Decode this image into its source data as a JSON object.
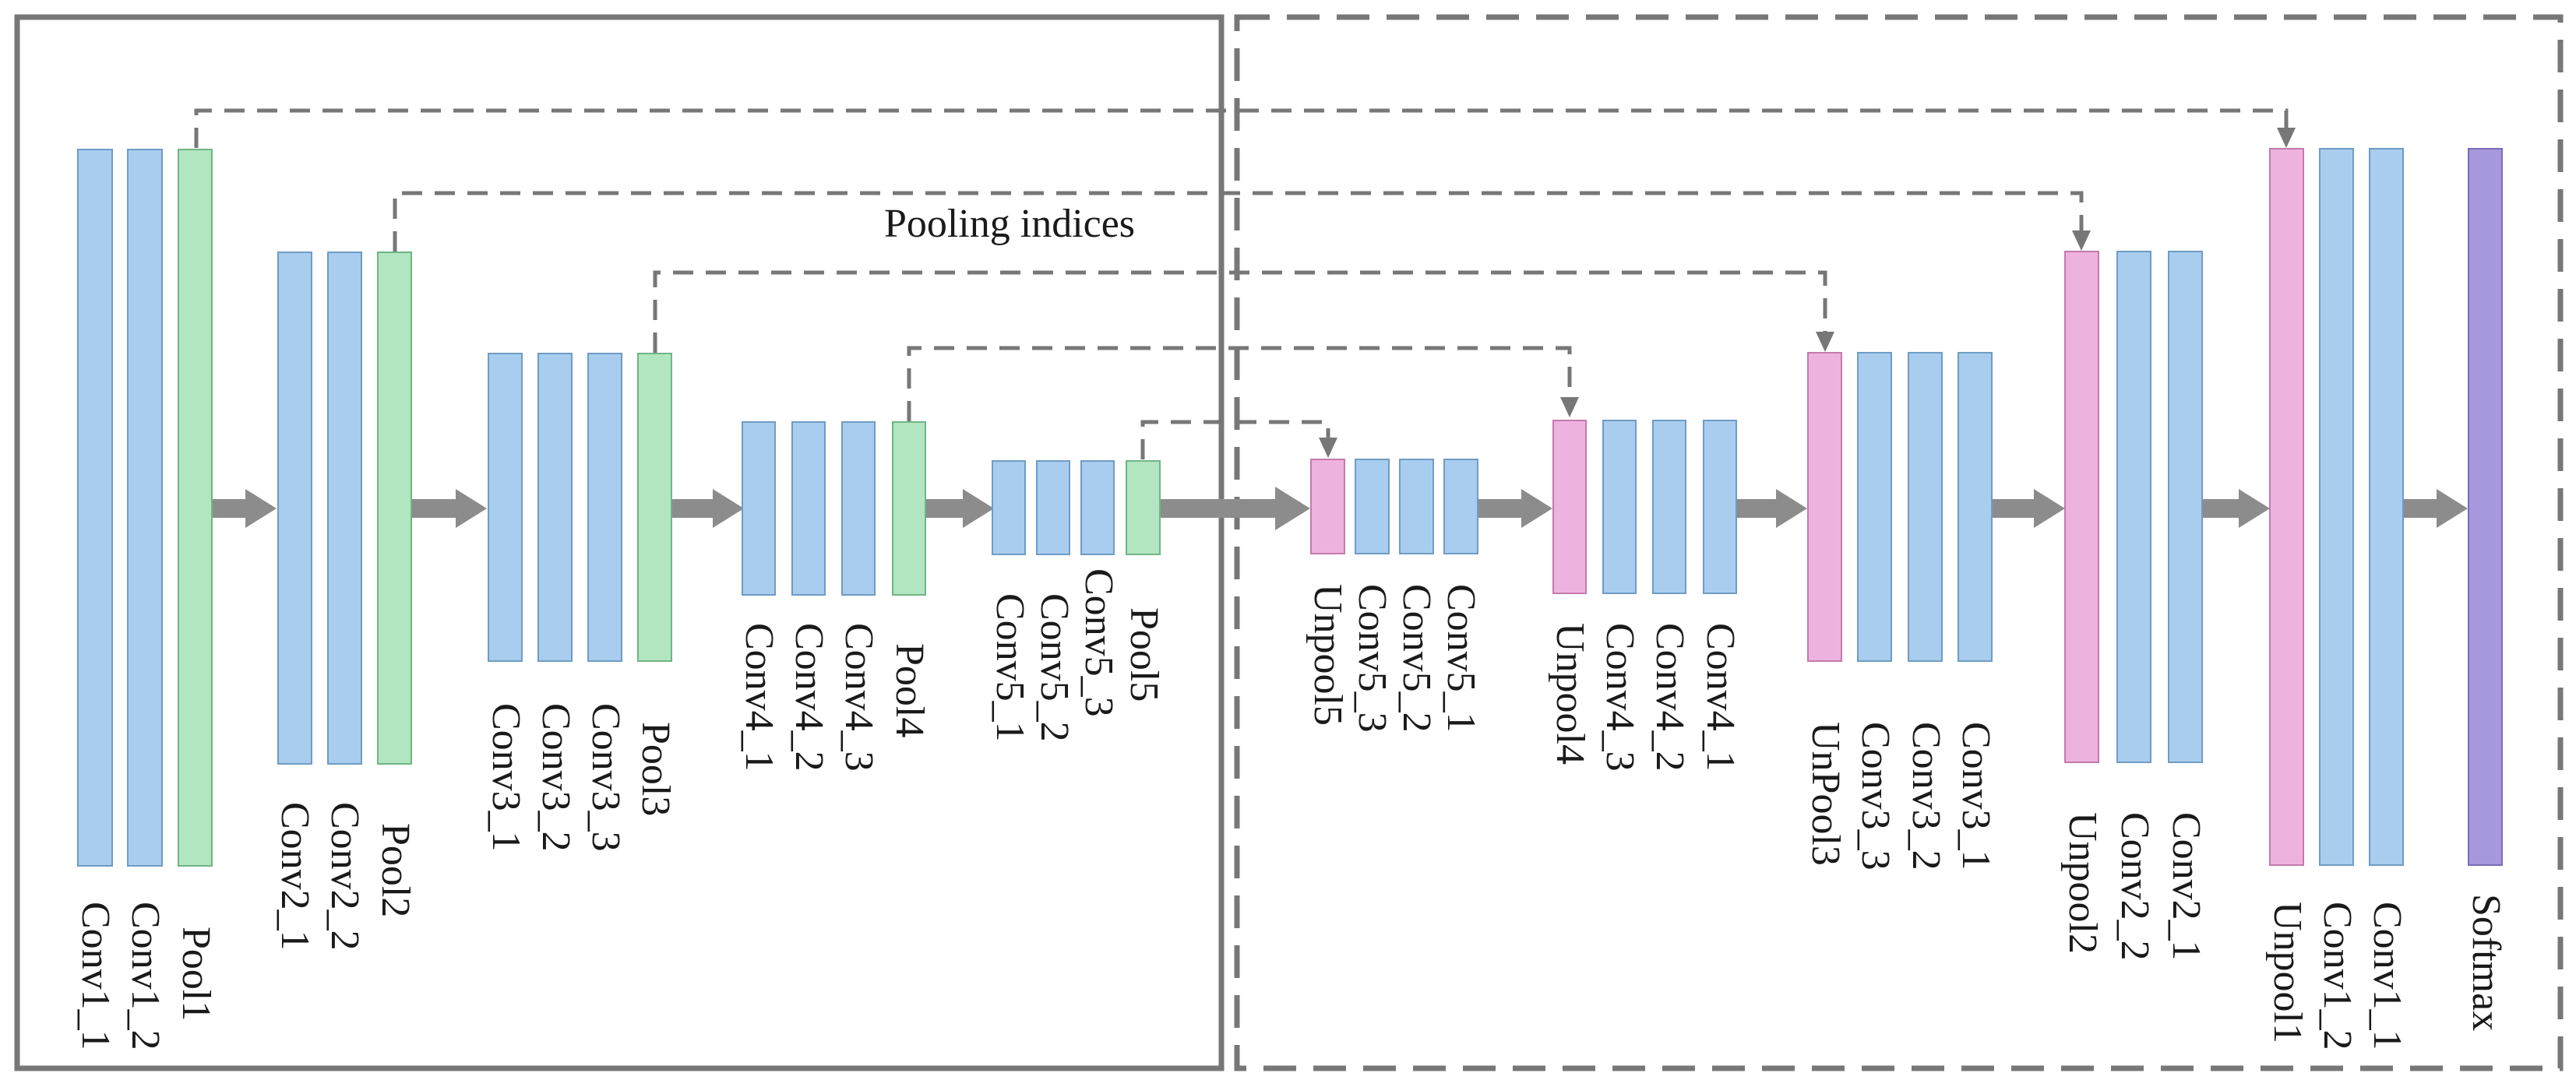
{
  "title": "Pooling indices",
  "colors": {
    "conv": "#a9cdee",
    "conv_stroke": "#6f9cc4",
    "pool": "#b2e6c0",
    "pool_stroke": "#6fb585",
    "unpool": "#eeb2e0",
    "unpool_stroke": "#c47aab",
    "softmax": "#a797dc",
    "softmax_stroke": "#7a6cb8",
    "arrow": "#8c8c8c",
    "border": "#777777"
  },
  "encoder": {
    "conv1_1": "Conv1_1",
    "conv1_2": "Conv1_2",
    "pool1": "Pool1",
    "conv2_1": "Conv2_1",
    "conv2_2": "Conv2_2",
    "pool2": "Pool2",
    "conv3_1": "Conv3_1",
    "conv3_2": "Conv3_2",
    "conv3_3": "Conv3_3",
    "pool3": "Pool3",
    "conv4_1": "Conv4_1",
    "conv4_2": "Conv4_2",
    "conv4_3": "Conv4_3",
    "pool4": "Pool4",
    "conv5_1": "Conv5_1",
    "conv5_2": "Conv5_2",
    "conv5_3": "Conv5_3",
    "pool5": "Pool5"
  },
  "decoder": {
    "unpool5": "Unpool5",
    "conv5_3": "Conv5_3",
    "conv5_2": "Conv5_2",
    "conv5_1": "Conv5_1",
    "unpool4": "Unpool4",
    "conv4_3": "Conv4_3",
    "conv4_2": "Conv4_2",
    "conv4_1": "Conv4_1",
    "unpool3": "UnPool3",
    "conv3_3": "Conv3_3",
    "conv3_2": "Conv3_2",
    "conv3_1": "Conv3_1",
    "unpool2": "Unpool2",
    "conv2_2": "Conv2_2",
    "conv2_1": "Conv2_1",
    "unpool1": "Unpool1",
    "conv1_2": "Conv1_2",
    "conv1_1": "Conv1_1",
    "softmax": "Softmax"
  }
}
